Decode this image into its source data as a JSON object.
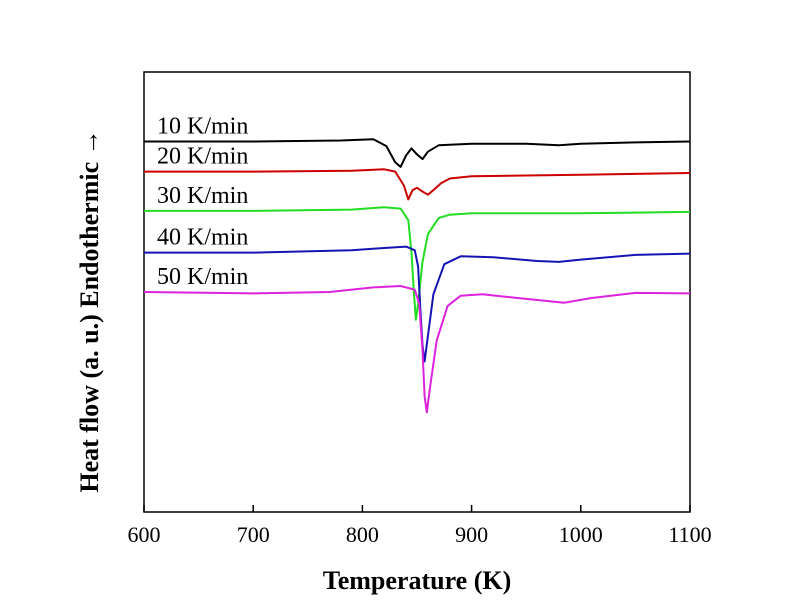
{
  "chart_data": {
    "type": "line",
    "title": "",
    "xlabel": "Temperature (K)",
    "ylabel": "Heat flow (a. u.) Endothermic →",
    "xlim": [
      600,
      1100
    ],
    "ylim": [
      -8,
      1.5
    ],
    "xticks": [
      600,
      700,
      800,
      900,
      1000,
      1100
    ],
    "grid": false,
    "legend": "none",
    "series": [
      {
        "name": "10 K/min",
        "color": "#000000",
        "points": [
          [
            600,
            0.0
          ],
          [
            700,
            0.0
          ],
          [
            780,
            0.02
          ],
          [
            810,
            0.05
          ],
          [
            822,
            -0.1
          ],
          [
            830,
            -0.45
          ],
          [
            835,
            -0.55
          ],
          [
            840,
            -0.3
          ],
          [
            845,
            -0.15
          ],
          [
            850,
            -0.28
          ],
          [
            855,
            -0.38
          ],
          [
            860,
            -0.22
          ],
          [
            870,
            -0.08
          ],
          [
            900,
            -0.05
          ],
          [
            950,
            -0.05
          ],
          [
            980,
            -0.08
          ],
          [
            1000,
            -0.05
          ],
          [
            1050,
            -0.02
          ],
          [
            1100,
            0.0
          ]
        ]
      },
      {
        "name": "20 K/min",
        "color": "#cc0000",
        "points": [
          [
            600,
            -0.65
          ],
          [
            700,
            -0.65
          ],
          [
            790,
            -0.63
          ],
          [
            820,
            -0.6
          ],
          [
            830,
            -0.65
          ],
          [
            838,
            -0.95
          ],
          [
            842,
            -1.25
          ],
          [
            846,
            -1.05
          ],
          [
            850,
            -1.0
          ],
          [
            855,
            -1.08
          ],
          [
            860,
            -1.15
          ],
          [
            865,
            -1.05
          ],
          [
            872,
            -0.9
          ],
          [
            880,
            -0.8
          ],
          [
            900,
            -0.75
          ],
          [
            1000,
            -0.72
          ],
          [
            1100,
            -0.68
          ]
        ]
      },
      {
        "name": "30 K/min",
        "color": "#22dd22",
        "points": [
          [
            600,
            -1.5
          ],
          [
            700,
            -1.5
          ],
          [
            790,
            -1.47
          ],
          [
            820,
            -1.42
          ],
          [
            835,
            -1.45
          ],
          [
            842,
            -1.7
          ],
          [
            845,
            -2.4
          ],
          [
            847,
            -3.2
          ],
          [
            849,
            -3.85
          ],
          [
            851,
            -3.5
          ],
          [
            855,
            -2.6
          ],
          [
            860,
            -2.0
          ],
          [
            870,
            -1.65
          ],
          [
            880,
            -1.58
          ],
          [
            900,
            -1.55
          ],
          [
            1000,
            -1.55
          ],
          [
            1100,
            -1.52
          ]
        ]
      },
      {
        "name": "40 K/min",
        "color": "#1414b4",
        "points": [
          [
            600,
            -2.4
          ],
          [
            700,
            -2.4
          ],
          [
            790,
            -2.35
          ],
          [
            820,
            -2.3
          ],
          [
            840,
            -2.27
          ],
          [
            848,
            -2.35
          ],
          [
            851,
            -2.7
          ],
          [
            853,
            -3.6
          ],
          [
            855,
            -4.4
          ],
          [
            857,
            -4.75
          ],
          [
            860,
            -4.2
          ],
          [
            865,
            -3.3
          ],
          [
            875,
            -2.65
          ],
          [
            890,
            -2.48
          ],
          [
            920,
            -2.5
          ],
          [
            960,
            -2.58
          ],
          [
            980,
            -2.6
          ],
          [
            1000,
            -2.55
          ],
          [
            1050,
            -2.45
          ],
          [
            1100,
            -2.42
          ]
        ]
      },
      {
        "name": "50 K/min",
        "color": "#dd22dd",
        "points": [
          [
            600,
            -3.25
          ],
          [
            700,
            -3.28
          ],
          [
            770,
            -3.25
          ],
          [
            810,
            -3.15
          ],
          [
            835,
            -3.12
          ],
          [
            848,
            -3.2
          ],
          [
            852,
            -3.5
          ],
          [
            855,
            -4.5
          ],
          [
            857,
            -5.5
          ],
          [
            859,
            -5.85
          ],
          [
            862,
            -5.3
          ],
          [
            868,
            -4.3
          ],
          [
            878,
            -3.55
          ],
          [
            890,
            -3.33
          ],
          [
            910,
            -3.3
          ],
          [
            950,
            -3.4
          ],
          [
            985,
            -3.48
          ],
          [
            1010,
            -3.38
          ],
          [
            1050,
            -3.27
          ],
          [
            1100,
            -3.28
          ]
        ]
      }
    ]
  }
}
